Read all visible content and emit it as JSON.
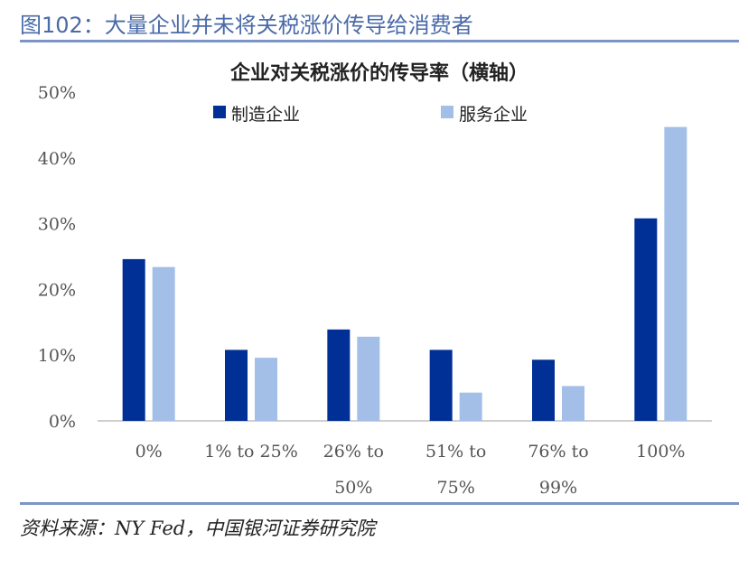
{
  "figure": {
    "title": "图102：大量企业并未将关税涨价传导给消费者",
    "source": "资料来源：NY Fed，中国银河证券研究院"
  },
  "colors": {
    "manufacturing": "#002f96",
    "services": "#a3bfe8",
    "rule": "#7b96c6",
    "title": "#4a6aa8"
  },
  "chart_data": {
    "type": "bar",
    "title": "企业对关税涨价的传导率（横轴）",
    "categories": [
      [
        "0%"
      ],
      [
        "1% to 25%"
      ],
      [
        "26% to",
        "50%"
      ],
      [
        "51% to",
        "75%"
      ],
      [
        "76% to",
        "99%"
      ],
      [
        "100%"
      ]
    ],
    "series": [
      {
        "name": "制造企业",
        "values": [
          24.6,
          10.8,
          13.9,
          10.8,
          9.3,
          30.8
        ]
      },
      {
        "name": "服务企业",
        "values": [
          23.4,
          9.6,
          12.8,
          4.3,
          5.3,
          44.7
        ]
      }
    ],
    "ylim": [
      0,
      50
    ],
    "yticks": [
      "0%",
      "10%",
      "20%",
      "30%",
      "40%",
      "50%"
    ],
    "ytick_values": [
      0,
      10,
      20,
      30,
      40,
      50
    ],
    "legend_position": "top",
    "grid": false
  }
}
